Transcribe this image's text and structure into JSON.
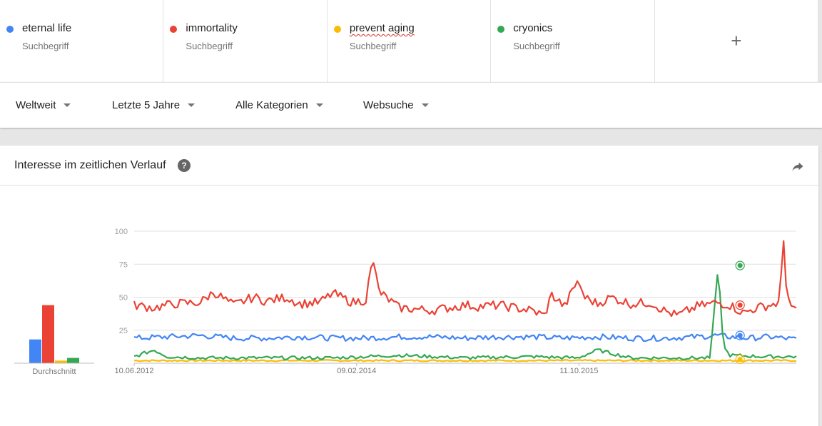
{
  "terms": [
    {
      "name": "eternal life",
      "sub": "Suchbegriff",
      "color": "#4285f4"
    },
    {
      "name": "immortality",
      "sub": "Suchbegriff",
      "color": "#ea4335"
    },
    {
      "name": "prevent aging",
      "sub": "Suchbegriff",
      "color": "#fbbc04"
    },
    {
      "name": "cryonics",
      "sub": "Suchbegriff",
      "color": "#34a853"
    }
  ],
  "add_term_label": "+",
  "filters": {
    "region": "Weltweit",
    "time": "Letzte 5 Jahre",
    "category": "Alle Kategorien",
    "search_type": "Websuche"
  },
  "card": {
    "title": "Interesse im zeitlichen Verlauf",
    "help_icon": "help-icon",
    "share_icon": "share-icon"
  },
  "chart_data": {
    "type": "line",
    "ylim": [
      0,
      100
    ],
    "yticks": [
      "100",
      "75",
      "50",
      "25"
    ],
    "yticks_values": [
      100,
      75,
      50,
      25
    ],
    "x_start": "2012-06-10",
    "x_end": "2017-05-28",
    "xticks": [
      "10.06.2012",
      "09.02.2014",
      "11.10.2015"
    ],
    "xticks_dates": [
      "2012-06-10",
      "2014-02-09",
      "2015-10-11"
    ],
    "average_label": "Durchschnitt",
    "grid": true,
    "marker_date": "2016-12-25",
    "series": [
      {
        "name": "eternal life",
        "color": "#4285f4",
        "average": 18,
        "marker_value": 21,
        "anchors": [
          [
            0,
            19
          ],
          [
            0.05,
            20
          ],
          [
            0.1,
            21
          ],
          [
            0.15,
            19
          ],
          [
            0.2,
            19
          ],
          [
            0.25,
            20
          ],
          [
            0.3,
            19
          ],
          [
            0.35,
            19
          ],
          [
            0.4,
            20
          ],
          [
            0.45,
            20
          ],
          [
            0.5,
            19
          ],
          [
            0.55,
            20
          ],
          [
            0.6,
            20
          ],
          [
            0.65,
            19
          ],
          [
            0.7,
            20
          ],
          [
            0.75,
            19
          ],
          [
            0.8,
            19
          ],
          [
            0.85,
            20
          ],
          [
            0.88,
            21
          ],
          [
            0.9,
            20
          ],
          [
            0.93,
            19
          ],
          [
            0.96,
            20
          ],
          [
            1,
            18
          ]
        ]
      },
      {
        "name": "immortality",
        "color": "#ea4335",
        "average": 44,
        "marker_value": 44,
        "anchors": [
          [
            0,
            44
          ],
          [
            0.03,
            42
          ],
          [
            0.06,
            45
          ],
          [
            0.1,
            46
          ],
          [
            0.12,
            54
          ],
          [
            0.15,
            44
          ],
          [
            0.18,
            50
          ],
          [
            0.2,
            47
          ],
          [
            0.23,
            50
          ],
          [
            0.25,
            45
          ],
          [
            0.28,
            46
          ],
          [
            0.3,
            53
          ],
          [
            0.33,
            46
          ],
          [
            0.35,
            48
          ],
          [
            0.36,
            80
          ],
          [
            0.37,
            54
          ],
          [
            0.38,
            50
          ],
          [
            0.4,
            42
          ],
          [
            0.45,
            40
          ],
          [
            0.5,
            44
          ],
          [
            0.52,
            43
          ],
          [
            0.55,
            44
          ],
          [
            0.6,
            40
          ],
          [
            0.62,
            36
          ],
          [
            0.63,
            52
          ],
          [
            0.65,
            43
          ],
          [
            0.67,
            63
          ],
          [
            0.68,
            50
          ],
          [
            0.7,
            45
          ],
          [
            0.72,
            50
          ],
          [
            0.75,
            45
          ],
          [
            0.78,
            46
          ],
          [
            0.8,
            40
          ],
          [
            0.82,
            36
          ],
          [
            0.85,
            43
          ],
          [
            0.88,
            46
          ],
          [
            0.9,
            44
          ],
          [
            0.92,
            38
          ],
          [
            0.94,
            42
          ],
          [
            0.96,
            44
          ],
          [
            0.975,
            46
          ],
          [
            0.98,
            100
          ],
          [
            0.985,
            52
          ],
          [
            0.99,
            48
          ],
          [
            1,
            40
          ]
        ]
      },
      {
        "name": "prevent aging",
        "color": "#fbbc04",
        "average": 2,
        "marker_value": 3,
        "anchors": [
          [
            0,
            2
          ],
          [
            0.2,
            2
          ],
          [
            0.4,
            2
          ],
          [
            0.6,
            2
          ],
          [
            0.8,
            2
          ],
          [
            1,
            2
          ]
        ]
      },
      {
        "name": "cryonics",
        "color": "#34a853",
        "average": 4,
        "marker_value": 74,
        "anchors": [
          [
            0,
            5
          ],
          [
            0.03,
            10
          ],
          [
            0.05,
            5
          ],
          [
            0.1,
            4
          ],
          [
            0.2,
            4
          ],
          [
            0.3,
            4
          ],
          [
            0.35,
            5
          ],
          [
            0.4,
            6
          ],
          [
            0.5,
            4
          ],
          [
            0.6,
            5
          ],
          [
            0.67,
            4
          ],
          [
            0.7,
            10
          ],
          [
            0.75,
            4
          ],
          [
            0.8,
            4
          ],
          [
            0.87,
            4
          ],
          [
            0.882,
            74
          ],
          [
            0.89,
            12
          ],
          [
            0.9,
            6
          ],
          [
            0.95,
            5
          ],
          [
            1,
            5
          ]
        ]
      }
    ]
  }
}
